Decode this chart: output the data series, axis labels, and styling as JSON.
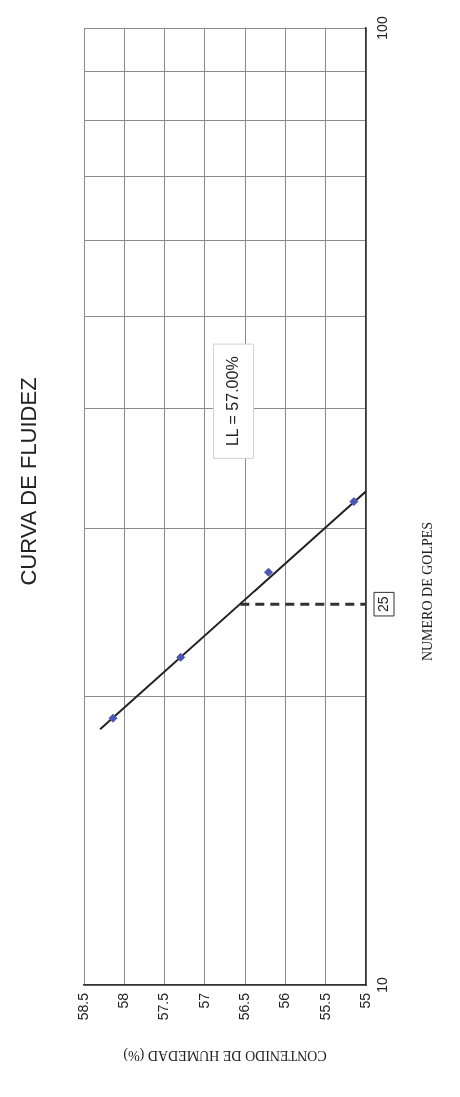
{
  "chart_data": {
    "type": "scatter",
    "title": "CURVA DE FLUIDEZ",
    "xlabel": "CONTENIDO DE HUMEDAD (%)",
    "ylabel": "NUMERO DE GOLPES",
    "log": "y",
    "grid": true,
    "legend": false,
    "xlim": [
      58.5,
      55
    ],
    "xticks": [
      58.5,
      58,
      57.5,
      57,
      56.5,
      56,
      55.5,
      55
    ],
    "ylim": [
      10,
      100
    ],
    "yticks": [
      10,
      {
        "value": 20,
        "label": null
      },
      25,
      {
        "value": 30,
        "label": null
      },
      {
        "value": 40,
        "label": null
      },
      {
        "value": 50,
        "label": null
      },
      {
        "value": 60,
        "label": null
      },
      {
        "value": 70,
        "label": null
      },
      {
        "value": 80,
        "label": null
      },
      {
        "value": 90,
        "label": null
      },
      100
    ],
    "series": [
      {
        "color": "#4b55b5",
        "marker": "diamond",
        "x": [
          58.14,
          57.3,
          56.21,
          55.15
        ],
        "values": [
          19,
          22,
          27,
          32
        ]
      },
      {
        "type": "line",
        "color": "#222222",
        "marker": "none",
        "line_style": "solid",
        "x": [
          58.3,
          55
        ],
        "values": [
          18.5,
          32.8
        ]
      },
      {
        "type": "line",
        "color": "#333333",
        "marker": "none",
        "line_style": "dashed",
        "x": [
          56.56,
          55
        ],
        "values": [
          25,
          25
        ]
      }
    ],
    "annotations": [
      "LL = 57.00%"
    ]
  }
}
